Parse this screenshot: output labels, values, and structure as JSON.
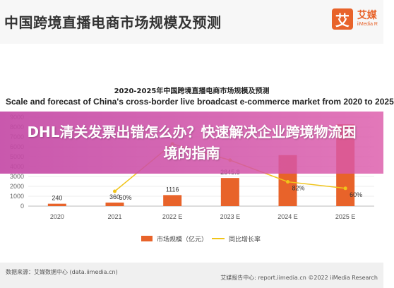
{
  "header": {
    "title": "中国跨境直播电商市场规模及预测",
    "brand_logo": "艾",
    "brand_name": "艾媒",
    "brand_sub": "iiMedia R"
  },
  "chart_data": {
    "type": "bar",
    "title": "2020-2025年中国跨境直播电商市场规模及预测",
    "subtitle": "Scale and forecast of China's cross-border live broadcast e-commerce market from 2020 to 2025",
    "categories": [
      "2020",
      "2021",
      "2022 E",
      "2023 E",
      "2024 E",
      "2025 E"
    ],
    "y_ticks": [
      "0",
      "1000",
      "2000",
      "3000",
      "4000",
      "5000",
      "6000",
      "7000",
      "8000",
      "9000"
    ],
    "ylim": [
      0,
      9000
    ],
    "series": [
      {
        "name": "市场规模（亿元）",
        "color": "#e8632a",
        "values": [
          240,
          360,
          1116,
          2845.8,
          5160,
          8287
        ],
        "labels": [
          "240",
          "360",
          "1116",
          "2845.8",
          "",
          ""
        ]
      },
      {
        "name": "同比增长率",
        "color": "#f0c419",
        "values": [
          null,
          50,
          210,
          155,
          82,
          60
        ],
        "labels": [
          "",
          "50%",
          "",
          "",
          "82%",
          "60%"
        ],
        "ylim": [
          0,
          300
        ]
      }
    ],
    "legend_position": "bottom"
  },
  "banner": {
    "text": "DHL清关发票出错怎么办？快速解决企业跨境物流困境的指南"
  },
  "footer": {
    "source": "数据来源：艾媒数据中心 (data.iimedia.cn)",
    "report": "艾媒报告中心: report.iimedia.cn  ©2022  iiMedia Research"
  }
}
